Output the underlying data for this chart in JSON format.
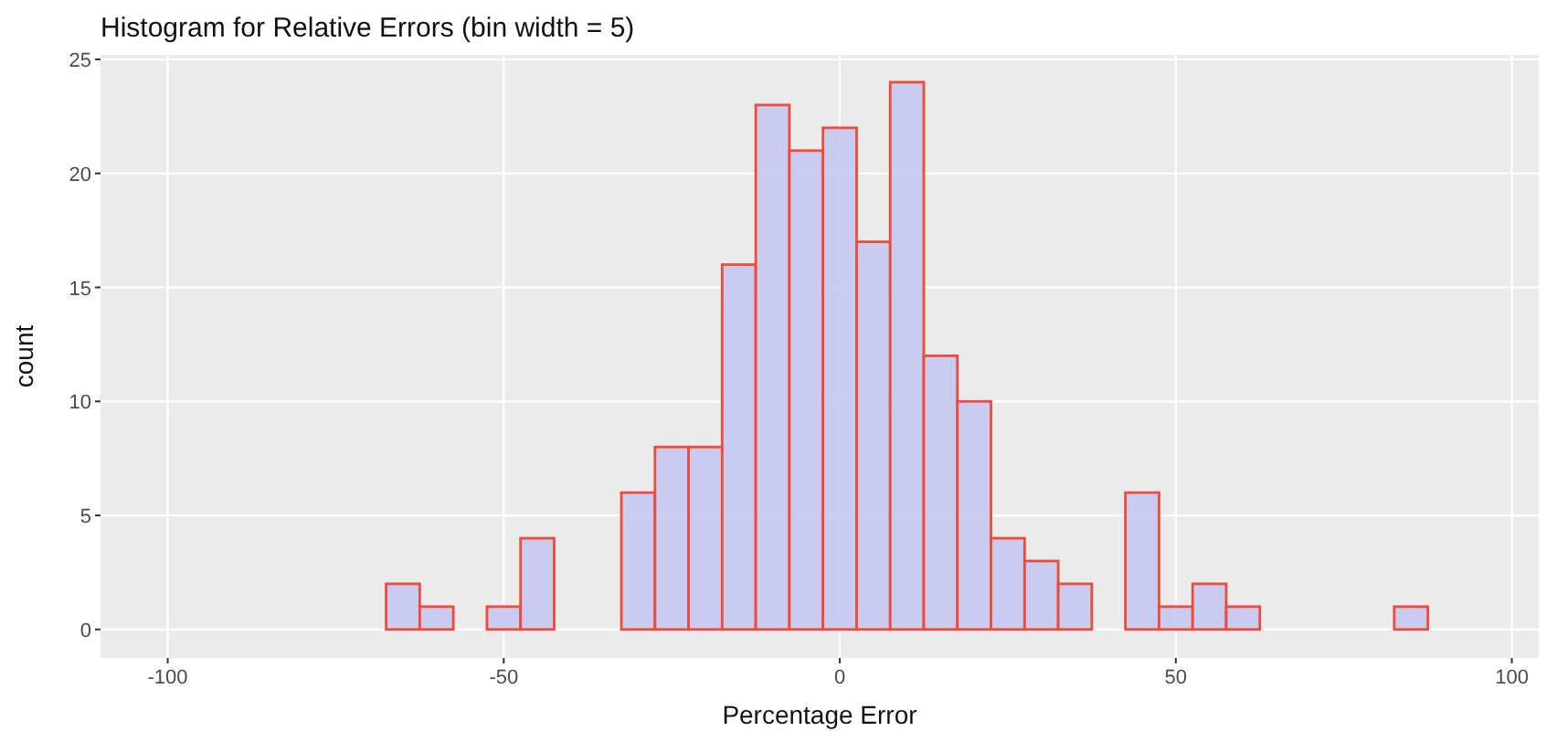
{
  "chart_data": {
    "type": "histogram",
    "title": "Histogram for Relative Errors (bin width = 5)",
    "xlabel": "Percentage Error",
    "ylabel": "count",
    "bins": [
      -97.5,
      -92.5,
      -87.5,
      -82.5,
      -77.5,
      -72.5,
      -67.5,
      -62.5,
      -57.5,
      -52.5,
      -47.5,
      -42.5,
      -37.5,
      -32.5,
      -27.5,
      -22.5,
      -17.5,
      -12.5,
      -7.5,
      -2.5,
      2.5,
      7.5,
      12.5,
      17.5,
      22.5,
      27.5,
      32.5,
      37.5,
      42.5,
      47.5,
      52.5,
      57.5,
      62.5,
      67.5,
      72.5,
      77.5,
      82.5,
      87.5,
      92.5,
      97.5
    ],
    "values": [
      0,
      0,
      0,
      0,
      0,
      0,
      2,
      1,
      0,
      1,
      4,
      0,
      0,
      6,
      8,
      8,
      16,
      23,
      21,
      22,
      17,
      24,
      12,
      10,
      4,
      3,
      2,
      0,
      6,
      1,
      2,
      1,
      0,
      0,
      0,
      0,
      1,
      0,
      0
    ],
    "color": "#c5c8f0",
    "xlim": [
      -110,
      104
    ],
    "xticks": [
      -100,
      -50,
      0,
      50,
      100
    ],
    "ylim": [
      -1.25,
      25.2
    ],
    "yticks": [
      0,
      5,
      10,
      15,
      20,
      25
    ],
    "grid": true
  }
}
